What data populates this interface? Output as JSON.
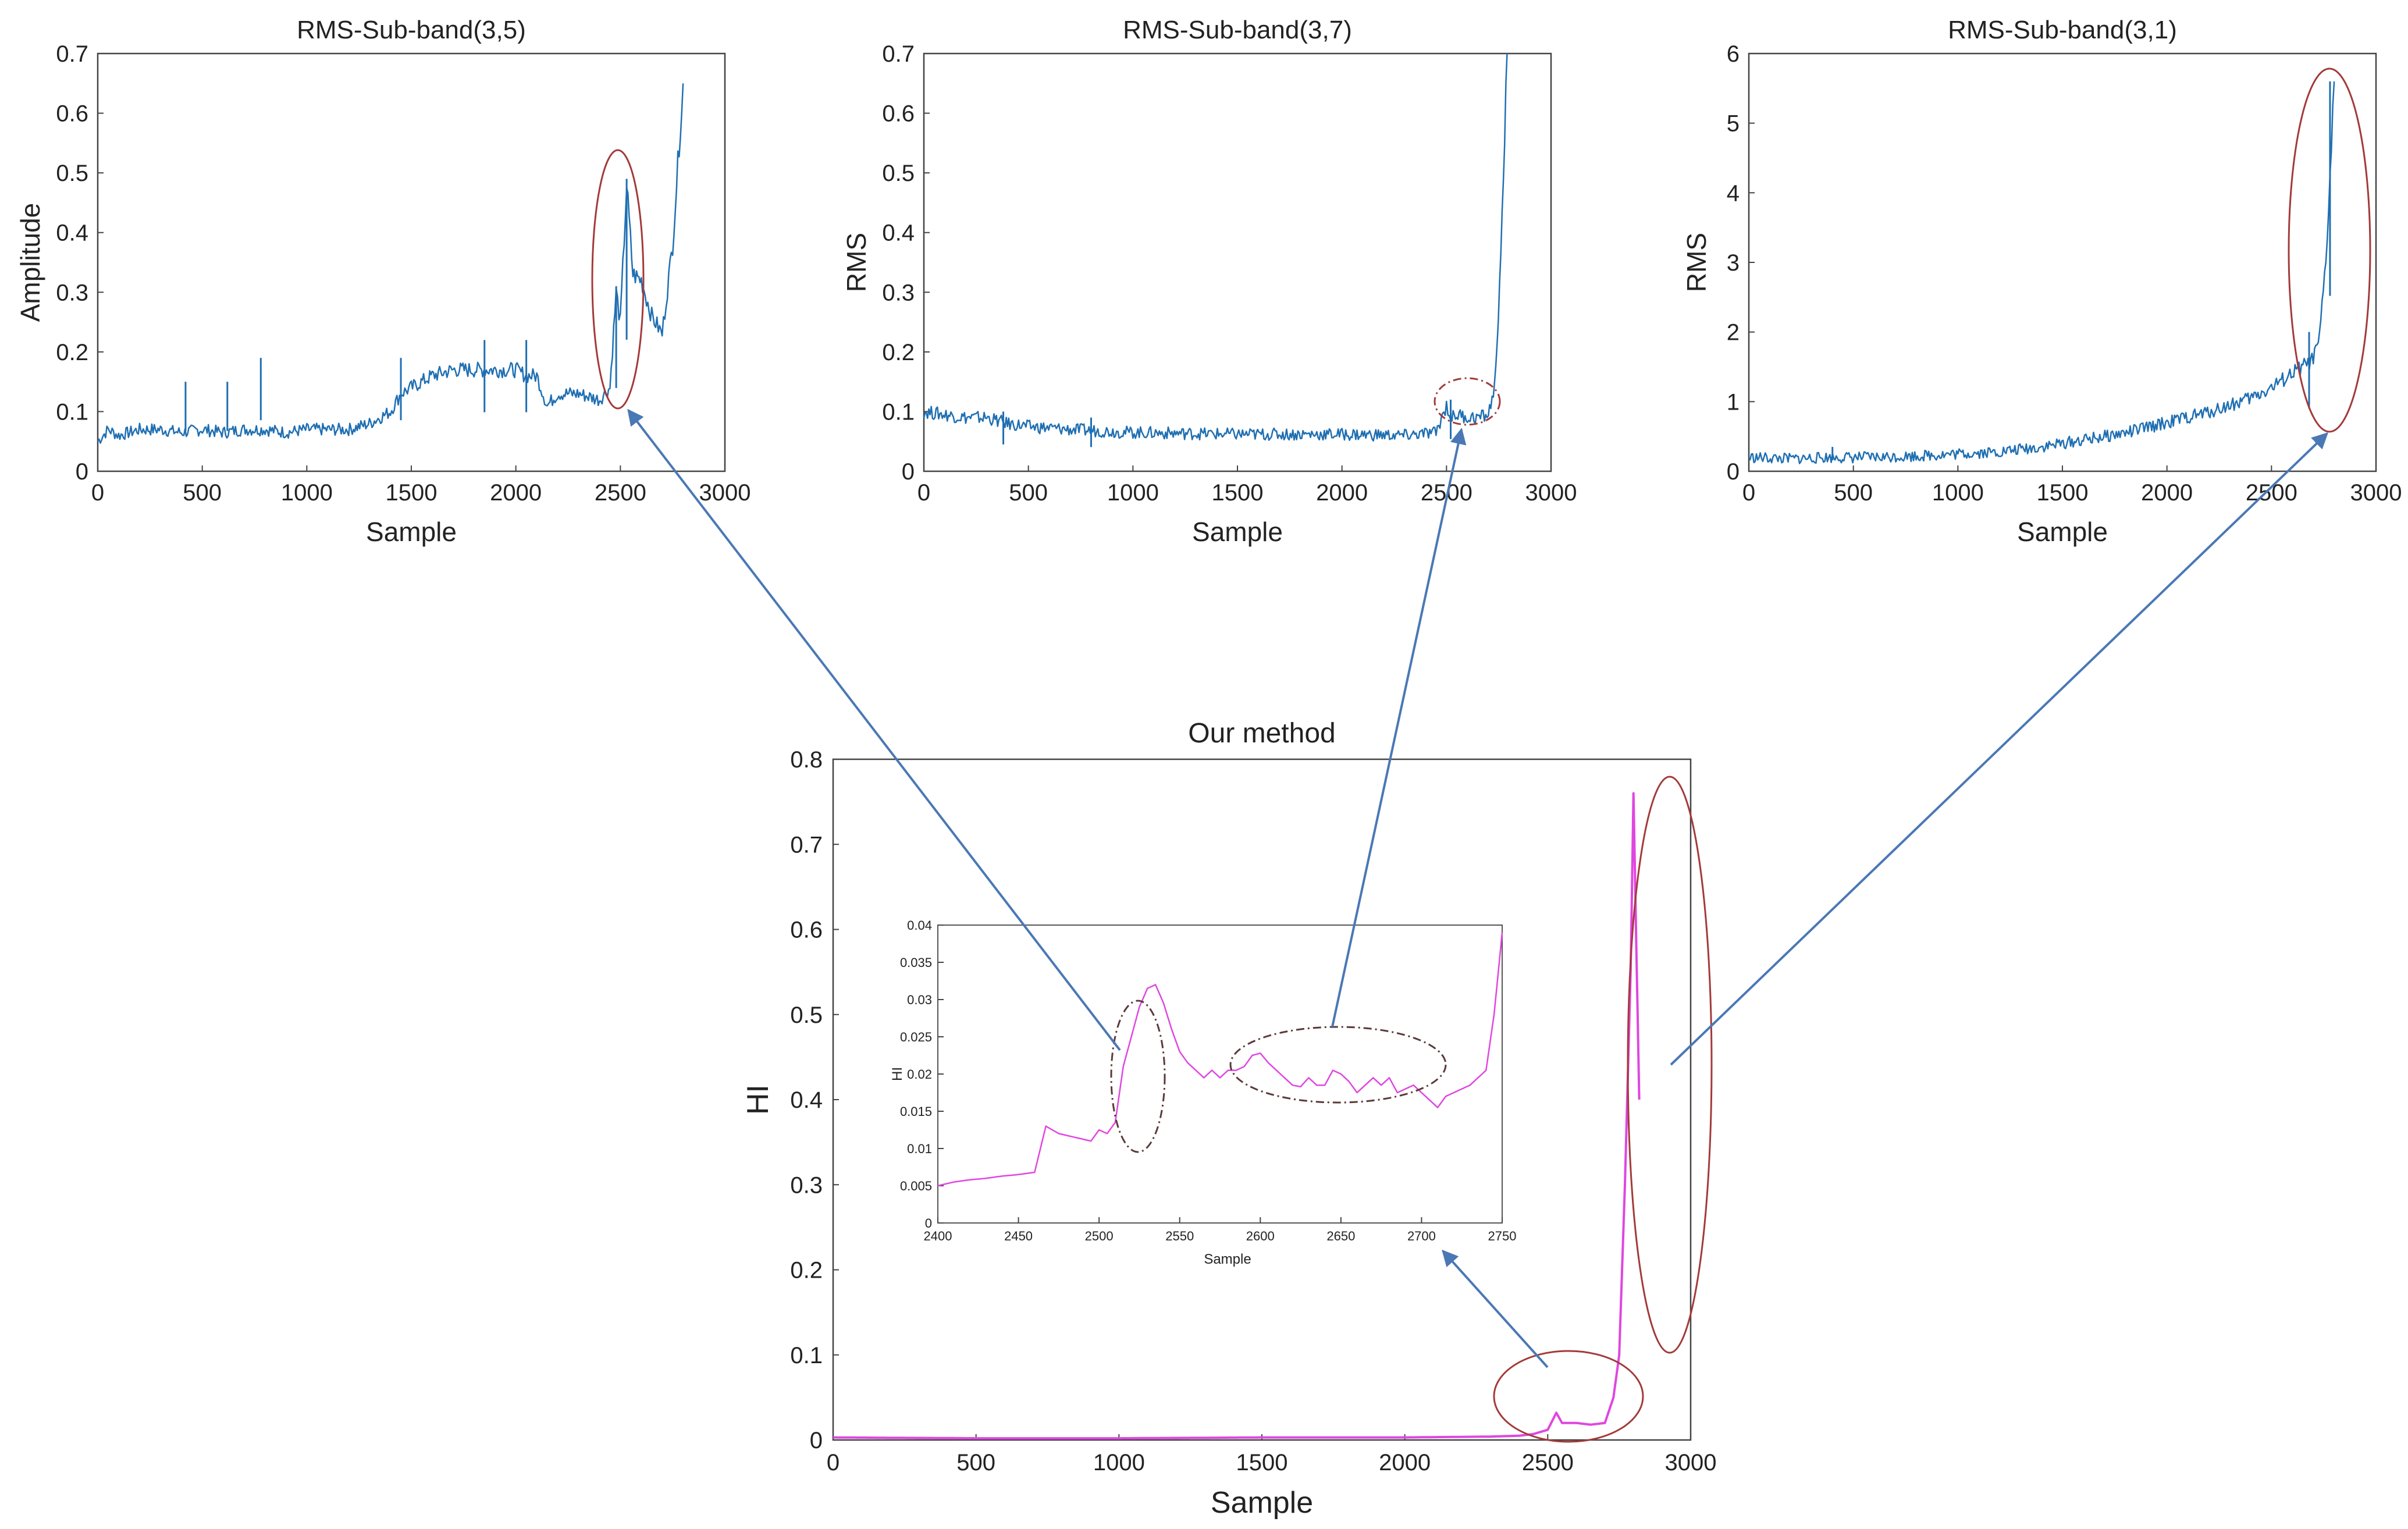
{
  "colors": {
    "series_blue": "#1f6fb2",
    "series_magenta": "#e046e0",
    "ellipse_red": "#a33a3a",
    "arrow": "#4a78b5",
    "ellipse_dash": "#5a3a3a"
  },
  "chart_data": [
    {
      "id": "sub35",
      "type": "line",
      "title": "RMS-Sub-band(3,5)",
      "xlabel": "Sample",
      "ylabel": "Amplitude",
      "xlim": [
        0,
        3000
      ],
      "ylim": [
        0,
        0.7
      ],
      "xticks": [
        "0",
        "500",
        "1000",
        "1500",
        "2000",
        "2500",
        "3000"
      ],
      "yticks": [
        "0",
        "0.1",
        "0.2",
        "0.3",
        "0.4",
        "0.5",
        "0.6",
        "0.7"
      ],
      "grid": false,
      "series": [
        {
          "x": [
            0,
            50,
            100,
            200,
            300,
            400,
            500,
            600,
            700,
            800,
            900,
            1000,
            1100,
            1200,
            1300,
            1400,
            1450,
            1500,
            1600,
            1700,
            1800,
            1900,
            2000,
            2050,
            2100,
            2150,
            2200,
            2300,
            2400,
            2450,
            2480,
            2500,
            2530,
            2560,
            2600,
            2650,
            2700,
            2750,
            2800
          ],
          "y": [
            0.05,
            0.07,
            0.06,
            0.07,
            0.07,
            0.065,
            0.07,
            0.065,
            0.07,
            0.07,
            0.065,
            0.07,
            0.07,
            0.07,
            0.08,
            0.1,
            0.13,
            0.14,
            0.16,
            0.17,
            0.17,
            0.17,
            0.17,
            0.16,
            0.16,
            0.11,
            0.13,
            0.13,
            0.12,
            0.14,
            0.3,
            0.25,
            0.48,
            0.33,
            0.32,
            0.26,
            0.23,
            0.38,
            0.65
          ]
        }
      ],
      "spikes": [
        [
          420,
          0.15
        ],
        [
          620,
          0.15
        ],
        [
          780,
          0.19
        ],
        [
          1450,
          0.19
        ],
        [
          1850,
          0.22
        ],
        [
          2050,
          0.22
        ],
        [
          2480,
          0.31
        ],
        [
          2530,
          0.49
        ]
      ]
    },
    {
      "id": "sub37",
      "type": "line",
      "title": "RMS-Sub-band(3,7)",
      "xlabel": "Sample",
      "ylabel": "RMS",
      "xlim": [
        0,
        3000
      ],
      "ylim": [
        0,
        0.7
      ],
      "xticks": [
        "0",
        "500",
        "1000",
        "1500",
        "2000",
        "2500",
        "3000"
      ],
      "yticks": [
        "0",
        "0.1",
        "0.2",
        "0.3",
        "0.4",
        "0.5",
        "0.6",
        "0.7"
      ],
      "grid": false,
      "series": [
        {
          "x": [
            0,
            100,
            200,
            300,
            400,
            500,
            700,
            1000,
            1500,
            2000,
            2300,
            2450,
            2500,
            2520,
            2560,
            2600,
            2650,
            2700,
            2730,
            2760,
            2790
          ],
          "y": [
            0.1,
            0.095,
            0.09,
            0.09,
            0.08,
            0.075,
            0.07,
            0.065,
            0.062,
            0.062,
            0.06,
            0.065,
            0.11,
            0.09,
            0.095,
            0.09,
            0.09,
            0.095,
            0.14,
            0.35,
            0.7
          ]
        }
      ],
      "spikes": [
        [
          380,
          0.1
        ],
        [
          800,
          0.09
        ],
        [
          2520,
          0.12
        ]
      ]
    },
    {
      "id": "sub31",
      "type": "line",
      "title": "RMS-Sub-band(3,1)",
      "xlabel": "Sample",
      "ylabel": "RMS",
      "xlim": [
        0,
        3000
      ],
      "ylim": [
        0,
        6
      ],
      "xticks": [
        "0",
        "500",
        "1000",
        "1500",
        "2000",
        "2500",
        "3000"
      ],
      "yticks": [
        "0",
        "1",
        "2",
        "3",
        "4",
        "5",
        "6"
      ],
      "grid": false,
      "series": [
        {
          "x": [
            0,
            200,
            400,
            600,
            800,
            1000,
            1200,
            1400,
            1600,
            1800,
            2000,
            2200,
            2400,
            2500,
            2600,
            2650,
            2700,
            2730,
            2760,
            2780,
            2800
          ],
          "y": [
            0.2,
            0.18,
            0.2,
            0.2,
            0.22,
            0.25,
            0.28,
            0.35,
            0.45,
            0.55,
            0.7,
            0.85,
            1.05,
            1.2,
            1.4,
            1.5,
            1.6,
            1.9,
            3.0,
            4.2,
            5.6
          ]
        }
      ],
      "spikes": [
        [
          400,
          0.35
        ],
        [
          2680,
          2.0
        ],
        [
          2780,
          5.6
        ]
      ]
    },
    {
      "id": "ours",
      "type": "line",
      "title": "Our method",
      "xlabel": "Sample",
      "ylabel": "HI",
      "xlim": [
        0,
        3000
      ],
      "ylim": [
        0,
        0.8
      ],
      "xticks": [
        "0",
        "500",
        "1000",
        "1500",
        "2000",
        "2500",
        "3000"
      ],
      "yticks": [
        "0",
        "0.1",
        "0.2",
        "0.3",
        "0.4",
        "0.5",
        "0.6",
        "0.7",
        "0.8"
      ],
      "grid": false,
      "series": [
        {
          "x": [
            0,
            500,
            1000,
            1500,
            2000,
            2300,
            2400,
            2450,
            2500,
            2530,
            2550,
            2600,
            2650,
            2700,
            2730,
            2750,
            2770,
            2790,
            2800,
            2820
          ],
          "y": [
            0.003,
            0.002,
            0.002,
            0.003,
            0.003,
            0.004,
            0.005,
            0.007,
            0.012,
            0.032,
            0.02,
            0.02,
            0.018,
            0.02,
            0.05,
            0.1,
            0.3,
            0.55,
            0.76,
            0.4
          ]
        }
      ]
    },
    {
      "id": "inset",
      "type": "line",
      "xlabel": "Sample",
      "ylabel": "HI",
      "xlim": [
        2400,
        2750
      ],
      "ylim": [
        0,
        0.04
      ],
      "xticks": [
        "2400",
        "2450",
        "2500",
        "2550",
        "2600",
        "2650",
        "2700",
        "2750"
      ],
      "yticks": [
        "0",
        "0.005",
        "0.01",
        "0.015",
        "0.02",
        "0.025",
        "0.03",
        "0.035",
        "0.04"
      ],
      "grid": false,
      "series": [
        {
          "x": [
            2400,
            2410,
            2420,
            2430,
            2440,
            2450,
            2460,
            2467,
            2475,
            2485,
            2495,
            2500,
            2505,
            2510,
            2515,
            2520,
            2525,
            2530,
            2535,
            2540,
            2545,
            2550,
            2555,
            2560,
            2565,
            2570,
            2575,
            2580,
            2585,
            2590,
            2595,
            2600,
            2605,
            2610,
            2615,
            2620,
            2625,
            2630,
            2635,
            2640,
            2645,
            2650,
            2655,
            2660,
            2665,
            2670,
            2675,
            2680,
            2685,
            2690,
            2695,
            2700,
            2705,
            2710,
            2715,
            2720,
            2725,
            2730,
            2735,
            2740,
            2745,
            2750
          ],
          "y": [
            0.005,
            0.0055,
            0.0058,
            0.006,
            0.0063,
            0.0065,
            0.0068,
            0.013,
            0.012,
            0.0115,
            0.011,
            0.0125,
            0.012,
            0.0135,
            0.021,
            0.025,
            0.029,
            0.0315,
            0.032,
            0.0295,
            0.026,
            0.023,
            0.0215,
            0.0205,
            0.0195,
            0.0205,
            0.0195,
            0.0205,
            0.0205,
            0.021,
            0.0225,
            0.0228,
            0.0215,
            0.0205,
            0.0195,
            0.0185,
            0.0183,
            0.0195,
            0.0185,
            0.0185,
            0.0205,
            0.02,
            0.019,
            0.0175,
            0.0185,
            0.0195,
            0.0185,
            0.0195,
            0.0175,
            0.018,
            0.0185,
            0.0175,
            0.0165,
            0.0155,
            0.017,
            0.0175,
            0.018,
            0.0185,
            0.0195,
            0.0205,
            0.028,
            0.039
          ]
        }
      ]
    }
  ]
}
